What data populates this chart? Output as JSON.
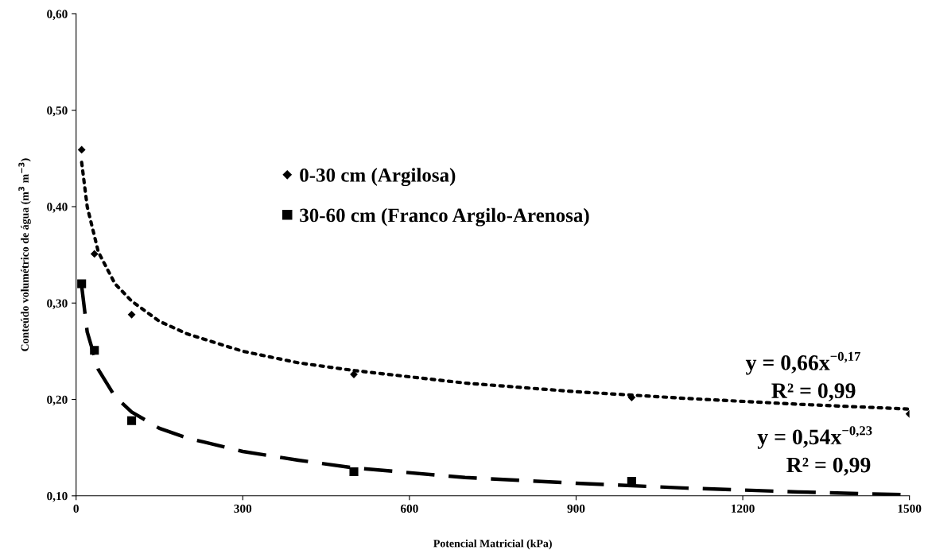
{
  "chart_data": {
    "type": "scatter",
    "xlabel": "Potencial Matricial (kPa)",
    "ylabel": "Conteúdo volumétrico de água (m$^{3}$ m$^{−3}$)",
    "xlim": [
      0,
      1500
    ],
    "xticks": [
      0,
      300,
      600,
      900,
      1200,
      1500
    ],
    "ylim": [
      0.1,
      0.6
    ],
    "yticks": [
      {
        "value": 0.1,
        "label": "0,10"
      },
      {
        "value": 0.2,
        "label": "0,20"
      },
      {
        "value": 0.3,
        "label": "0,30"
      },
      {
        "value": 0.4,
        "label": "0,40"
      },
      {
        "value": 0.5,
        "label": "0,50"
      },
      {
        "value": 0.6,
        "label": "0,60"
      }
    ],
    "grid": false,
    "legend": "center",
    "series": [
      {
        "name": "0-30 cm (Argilosa)",
        "color": "#000000",
        "marker": "diamond",
        "x": [
          10,
          33,
          100,
          500,
          1000,
          1500
        ],
        "values": [
          0.459,
          0.351,
          0.288,
          0.226,
          0.202,
          0.185
        ]
      },
      {
        "name": "30-60 cm (Franco Argilo-Arenosa)",
        "color": "#000000",
        "marker": "square",
        "x": [
          10,
          33,
          100,
          500,
          1000
        ],
        "values": [
          0.32,
          0.251,
          0.178,
          0.125,
          0.115
        ]
      },
      {
        "type": "line",
        "color": "#000000",
        "line_style": "dotted",
        "x": [
          10,
          20,
          40,
          70,
          100,
          150,
          200,
          300,
          400,
          500,
          700,
          900,
          1100,
          1300,
          1500
        ],
        "values": [
          0.446,
          0.4,
          0.353,
          0.32,
          0.302,
          0.281,
          0.268,
          0.25,
          0.238,
          0.23,
          0.217,
          0.208,
          0.201,
          0.195,
          0.19
        ]
      },
      {
        "type": "line",
        "color": "#000000",
        "line_style": "dashed",
        "x": [
          10,
          20,
          40,
          70,
          100,
          150,
          200,
          300,
          400,
          500,
          700,
          900,
          1100,
          1300,
          1500
        ],
        "values": [
          0.318,
          0.27,
          0.231,
          0.203,
          0.187,
          0.17,
          0.16,
          0.146,
          0.137,
          0.129,
          0.119,
          0.113,
          0.108,
          0.104,
          0.101
        ]
      }
    ],
    "annotations": [
      "y = 0,66x$^{−0,17}$",
      "R² = 0,99",
      "y = 0,54x$^{−0,23}$",
      "R² = 0,99"
    ]
  }
}
